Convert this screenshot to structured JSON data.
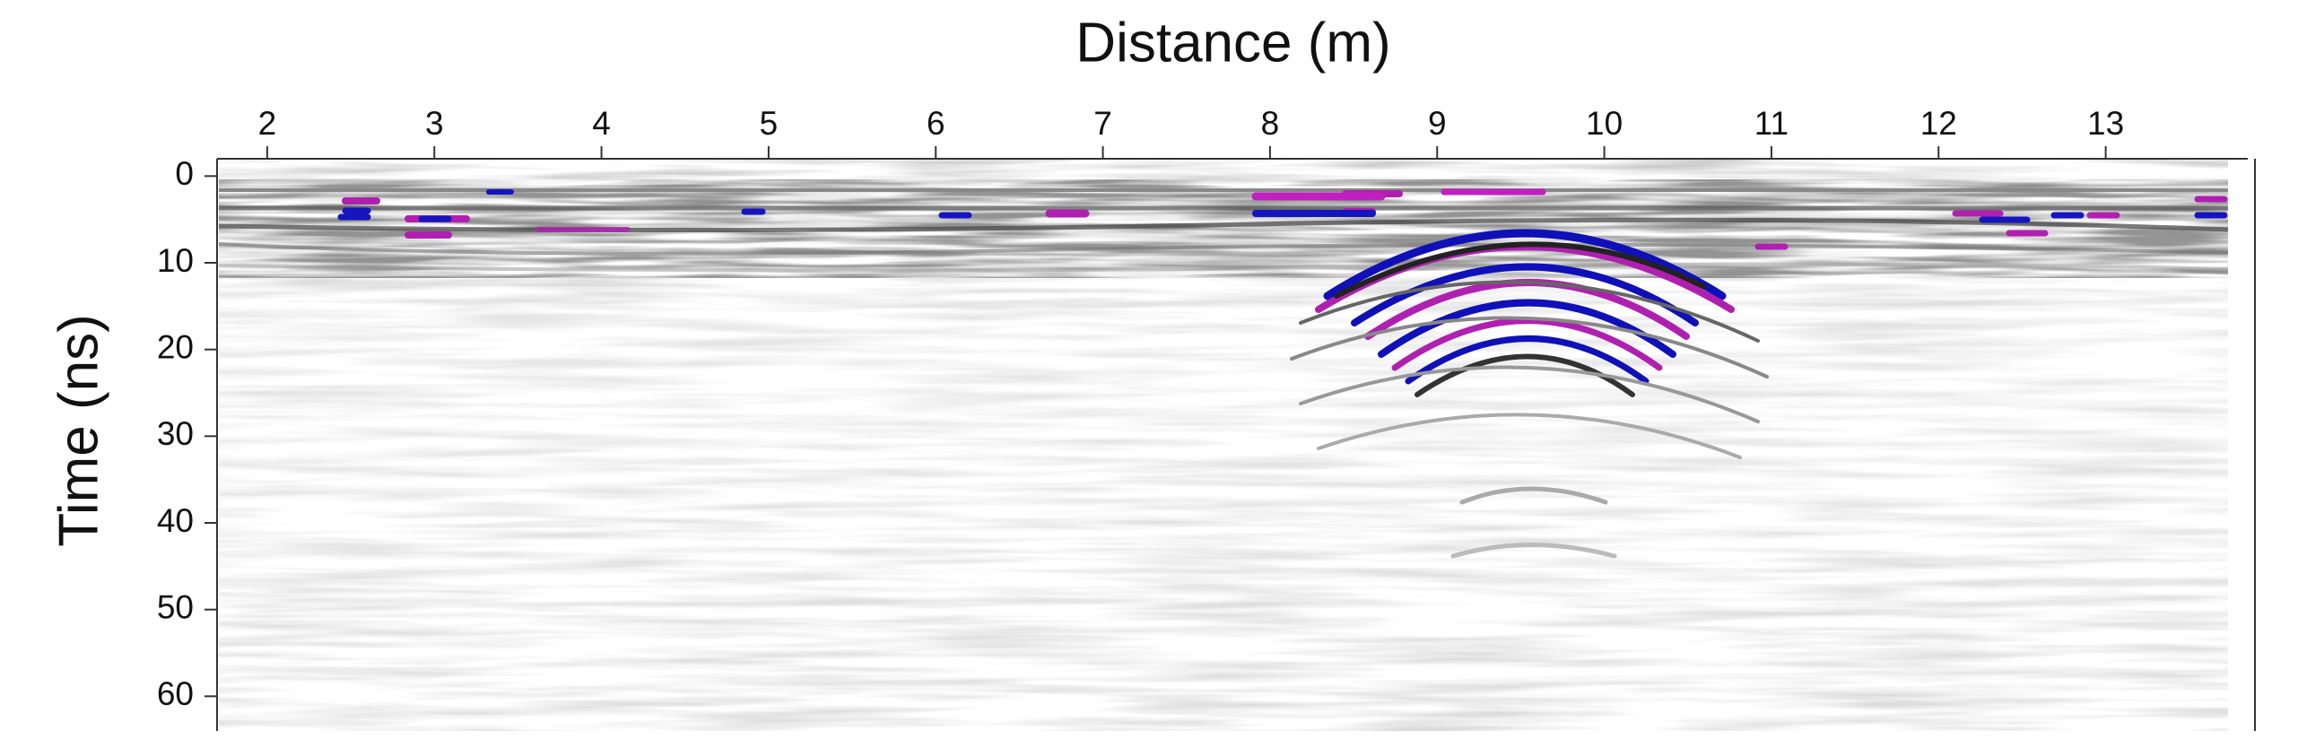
{
  "chart_data": {
    "type": "radargram",
    "xlabel": "Distance (m)",
    "ylabel": "Time (ns)",
    "xlim": [
      1.7,
      13.85
    ],
    "xticks": [
      2,
      3,
      4,
      5,
      6,
      7,
      8,
      9,
      10,
      11,
      12,
      13
    ],
    "ylim": [
      -2,
      64
    ],
    "yticks": [
      0,
      10,
      20,
      30,
      40,
      50,
      60
    ],
    "y_inverted": true
  }
}
